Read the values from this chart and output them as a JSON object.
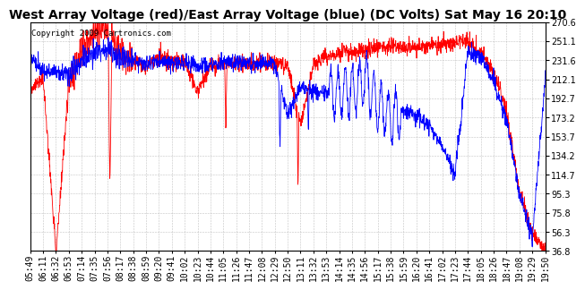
{
  "title": "West Array Voltage (red)/East Array Voltage (blue) (DC Volts) Sat May 16 20:10",
  "copyright": "Copyright 2009 Cartronics.com",
  "ymin": 36.8,
  "ymax": 270.6,
  "yticks": [
    270.6,
    251.1,
    231.6,
    212.1,
    192.7,
    173.2,
    153.7,
    134.2,
    114.7,
    95.3,
    75.8,
    56.3,
    36.8
  ],
  "xtick_labels": [
    "05:49",
    "06:11",
    "06:32",
    "06:53",
    "07:14",
    "07:35",
    "07:56",
    "08:17",
    "08:38",
    "08:59",
    "09:20",
    "09:41",
    "10:02",
    "10:23",
    "10:44",
    "11:05",
    "11:26",
    "11:47",
    "12:08",
    "12:29",
    "12:50",
    "13:11",
    "13:32",
    "13:53",
    "14:14",
    "14:35",
    "14:56",
    "15:17",
    "15:38",
    "15:59",
    "16:20",
    "16:41",
    "17:02",
    "17:23",
    "17:44",
    "18:05",
    "18:26",
    "18:47",
    "19:08",
    "19:29",
    "19:50"
  ],
  "red_color": "#ff0000",
  "blue_color": "#0000ff",
  "bg_color": "#ffffff",
  "grid_color": "#aaaaaa",
  "title_fontsize": 10,
  "copyright_fontsize": 6.5,
  "tick_fontsize": 7
}
